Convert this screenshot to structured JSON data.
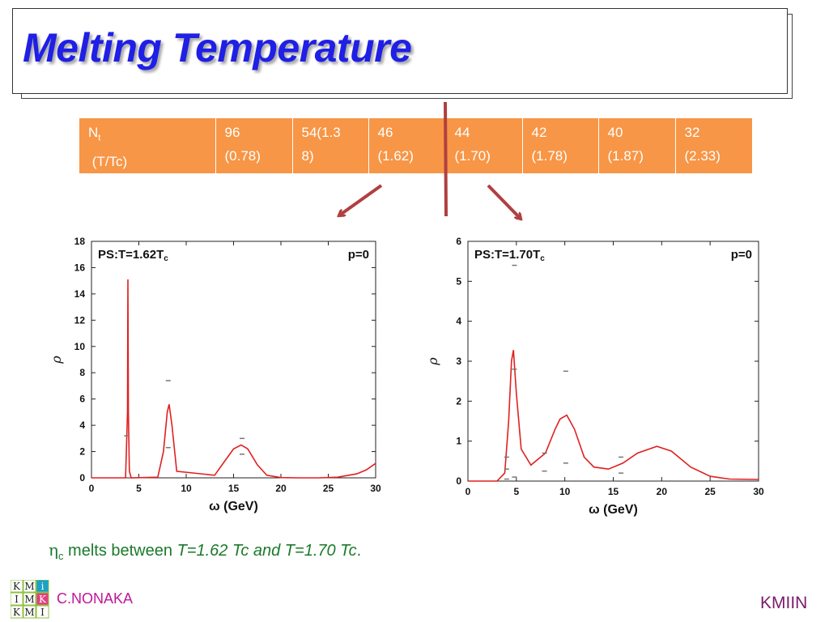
{
  "slide": {
    "title": "Melting Temperature",
    "author": "C.NONAKA",
    "footer_right": "KMIIN",
    "logo_letters": [
      "K",
      "M",
      "i",
      "I",
      "M",
      "K",
      "K",
      "M",
      "I"
    ]
  },
  "table": {
    "header_main": "N",
    "header_sub": "t",
    "header_line2": " (T/Tc)",
    "cells": [
      {
        "l1": "96",
        "l2": "(0.78)"
      },
      {
        "l1": "54(1.3",
        "l2": "8)"
      },
      {
        "l1": "46",
        "l2": "(1.62)"
      },
      {
        "l1": "44",
        "l2": "(1.70)"
      },
      {
        "l1": "42",
        "l2": "(1.78)"
      },
      {
        "l1": "40",
        "l2": "(1.87)"
      },
      {
        "l1": "32",
        "l2": "(2.33)"
      }
    ]
  },
  "caption": {
    "symbol": "η",
    "sub": "c",
    "text": " melts between ",
    "range": "T=1.62 Tc and T=1.70 Tc",
    "end": "."
  },
  "colors": {
    "title": "#1f1fe6",
    "table_fill": "#f79646",
    "arrow": "#b04040",
    "curve": "#e02020",
    "caption": "#1a7a2a",
    "author": "#c0169a"
  },
  "chart_data": [
    {
      "type": "line",
      "annotation_left": "PS:T=1.62T",
      "annotation_left_sub": "c",
      "annotation_right": "p=0",
      "xlabel": "ω (GeV)",
      "ylabel": "ρ",
      "xlim": [
        0,
        30
      ],
      "ylim": [
        0,
        18
      ],
      "xticks": [
        "0",
        "5",
        "10",
        "15",
        "20",
        "25",
        "30"
      ],
      "yticks": [
        "0",
        "2",
        "4",
        "6",
        "8",
        "10",
        "12",
        "14",
        "16",
        "18"
      ],
      "series": [
        {
          "x": [
            0,
            3.6,
            3.8,
            3.85,
            3.9,
            4.0,
            4.2,
            7.0,
            7.6,
            8.0,
            8.2,
            8.5,
            9.0,
            13.0,
            14.0,
            15.0,
            15.8,
            16.5,
            17.5,
            18.5,
            20,
            22,
            24,
            26,
            28,
            29,
            30
          ],
          "values": [
            0,
            0,
            5,
            15.1,
            5,
            0.5,
            0,
            0.05,
            2.0,
            5.0,
            5.6,
            4.0,
            0.5,
            0.2,
            1.2,
            2.2,
            2.5,
            2.2,
            1.0,
            0.2,
            0.02,
            0,
            0,
            0.05,
            0.3,
            0.6,
            1.1
          ]
        }
      ],
      "error_marks": [
        {
          "x": 3.7,
          "y": 3.2
        },
        {
          "x": 8.1,
          "y": 7.4
        },
        {
          "x": 8.1,
          "y": 2.3
        },
        {
          "x": 15.9,
          "y": 3.0
        },
        {
          "x": 15.9,
          "y": 1.8
        }
      ]
    },
    {
      "type": "line",
      "annotation_left": "PS:T=1.70T",
      "annotation_left_sub": "c",
      "annotation_right": "p=0",
      "xlabel": "ω (GeV)",
      "ylabel": "ρ",
      "xlim": [
        0,
        30
      ],
      "ylim": [
        0,
        6
      ],
      "xticks": [
        "0",
        "5",
        "10",
        "15",
        "20",
        "25",
        "30"
      ],
      "yticks": [
        "0",
        "1",
        "2",
        "3",
        "4",
        "5",
        "6"
      ],
      "series": [
        {
          "x": [
            0,
            3.0,
            3.8,
            4.2,
            4.5,
            4.7,
            5.0,
            5.5,
            6.5,
            8.0,
            9.0,
            9.5,
            10.2,
            11.0,
            12.0,
            13.0,
            14.5,
            16.0,
            17.5,
            19.5,
            21.0,
            23.0,
            25.0,
            27.0,
            30.0
          ],
          "values": [
            0,
            0,
            0.2,
            1.5,
            3.0,
            3.28,
            2.2,
            0.8,
            0.4,
            0.7,
            1.3,
            1.55,
            1.65,
            1.3,
            0.6,
            0.35,
            0.3,
            0.45,
            0.7,
            0.87,
            0.75,
            0.35,
            0.12,
            0.05,
            0.04
          ]
        }
      ],
      "error_marks": [
        {
          "x": 4.0,
          "y": 0.6
        },
        {
          "x": 4.0,
          "y": 0.3
        },
        {
          "x": 4.0,
          "y": 0.05
        },
        {
          "x": 4.8,
          "y": 5.4
        },
        {
          "x": 4.8,
          "y": 2.8
        },
        {
          "x": 4.8,
          "y": 0.1
        },
        {
          "x": 7.9,
          "y": 0.7
        },
        {
          "x": 7.9,
          "y": 0.25
        },
        {
          "x": 10.1,
          "y": 2.75
        },
        {
          "x": 10.1,
          "y": 0.45
        },
        {
          "x": 15.8,
          "y": 0.6
        },
        {
          "x": 15.8,
          "y": 0.2
        }
      ]
    }
  ]
}
